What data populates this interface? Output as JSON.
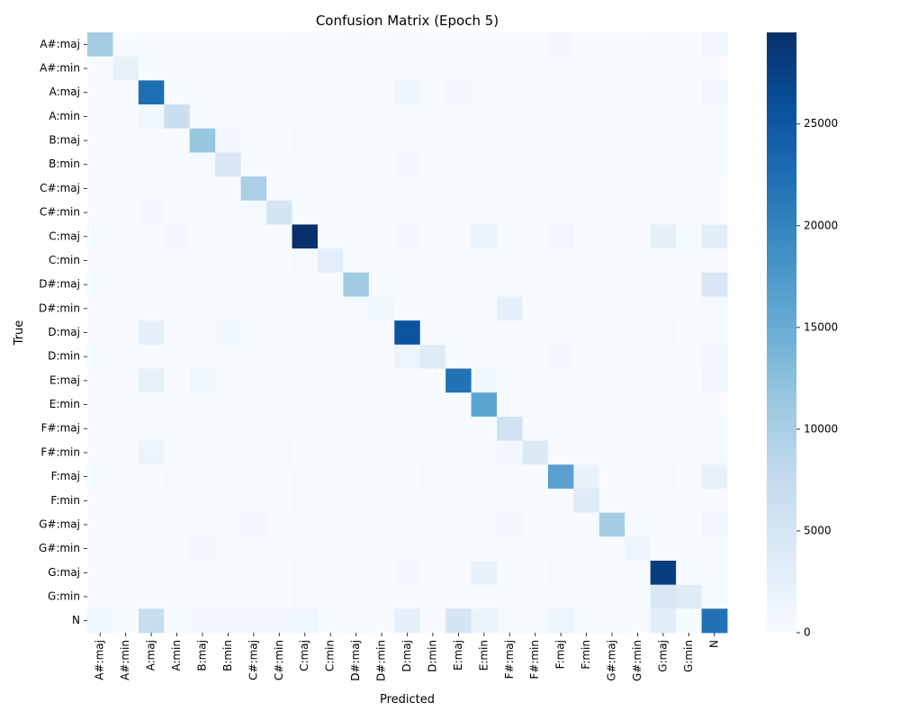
{
  "chart_data": {
    "type": "heatmap",
    "title": "Confusion Matrix (Epoch 5)",
    "xlabel": "Predicted",
    "ylabel": "True",
    "labels": [
      "A#:maj",
      "A#:min",
      "A:maj",
      "A:min",
      "B:maj",
      "B:min",
      "C#:maj",
      "C#:min",
      "C:maj",
      "C:min",
      "D#:maj",
      "D#:min",
      "D:maj",
      "D:min",
      "E:maj",
      "E:min",
      "F#:maj",
      "F#:min",
      "F:maj",
      "F:min",
      "G#:maj",
      "G#:min",
      "G:maj",
      "G:min",
      "N"
    ],
    "colorbar": {
      "min": 0,
      "max": 29500,
      "ticks": [
        0,
        5000,
        10000,
        15000,
        20000,
        25000
      ]
    },
    "colormap": [
      "#f7fbff",
      "#deebf7",
      "#c6dbef",
      "#9ecae1",
      "#6baed6",
      "#4292c6",
      "#2171b5",
      "#08519c",
      "#08306b"
    ],
    "matrix": [
      [
        10500,
        0,
        0,
        0,
        0,
        0,
        0,
        0,
        300,
        0,
        200,
        0,
        300,
        0,
        0,
        0,
        0,
        0,
        700,
        0,
        0,
        0,
        200,
        100,
        900
      ],
      [
        0,
        2200,
        0,
        0,
        0,
        0,
        500,
        0,
        0,
        0,
        0,
        0,
        0,
        0,
        0,
        0,
        200,
        0,
        0,
        0,
        0,
        150,
        0,
        0,
        0
      ],
      [
        0,
        0,
        22500,
        100,
        300,
        300,
        100,
        300,
        0,
        0,
        0,
        0,
        1200,
        0,
        800,
        500,
        0,
        0,
        100,
        0,
        0,
        0,
        100,
        0,
        900
      ],
      [
        0,
        0,
        1000,
        6500,
        0,
        0,
        0,
        0,
        0,
        0,
        0,
        0,
        300,
        0,
        0,
        300,
        0,
        0,
        200,
        0,
        0,
        0,
        0,
        0,
        300
      ],
      [
        0,
        0,
        300,
        0,
        11500,
        900,
        0,
        0,
        500,
        0,
        0,
        0,
        0,
        0,
        300,
        400,
        0,
        0,
        300,
        0,
        0,
        0,
        0,
        0,
        500
      ],
      [
        0,
        0,
        300,
        0,
        400,
        4500,
        0,
        0,
        0,
        0,
        0,
        0,
        600,
        0,
        0,
        400,
        0,
        200,
        0,
        0,
        0,
        0,
        0,
        0,
        300
      ],
      [
        0,
        300,
        0,
        0,
        0,
        0,
        10000,
        0,
        0,
        0,
        0,
        0,
        0,
        0,
        0,
        0,
        300,
        0,
        0,
        100,
        300,
        100,
        0,
        0,
        0
      ],
      [
        0,
        0,
        600,
        0,
        0,
        0,
        500,
        5000,
        0,
        0,
        0,
        0,
        0,
        0,
        500,
        0,
        0,
        0,
        0,
        0,
        0,
        0,
        0,
        0,
        0
      ],
      [
        400,
        0,
        0,
        800,
        0,
        300,
        0,
        0,
        29500,
        0,
        0,
        0,
        600,
        0,
        0,
        1900,
        0,
        0,
        900,
        0,
        0,
        0,
        2600,
        400,
        3200
      ],
      [
        0,
        0,
        0,
        0,
        0,
        0,
        0,
        0,
        400,
        3000,
        0,
        0,
        0,
        0,
        0,
        0,
        0,
        0,
        0,
        300,
        400,
        0,
        0,
        0,
        200
      ],
      [
        500,
        0,
        0,
        0,
        0,
        0,
        300,
        0,
        0,
        0,
        11000,
        0,
        0,
        0,
        0,
        0,
        0,
        0,
        0,
        0,
        0,
        0,
        0,
        0,
        4500
      ],
      [
        0,
        200,
        0,
        0,
        400,
        0,
        500,
        300,
        0,
        0,
        300,
        1000,
        0,
        0,
        0,
        0,
        2500,
        0,
        0,
        0,
        0,
        0,
        0,
        0,
        500
      ],
      [
        0,
        0,
        2500,
        0,
        0,
        1000,
        0,
        0,
        0,
        0,
        0,
        0,
        25500,
        0,
        0,
        500,
        0,
        0,
        300,
        0,
        0,
        0,
        400,
        0,
        500
      ],
      [
        300,
        0,
        0,
        0,
        0,
        0,
        0,
        0,
        0,
        0,
        0,
        0,
        1500,
        3500,
        0,
        0,
        0,
        0,
        700,
        0,
        0,
        0,
        0,
        0,
        600
      ],
      [
        0,
        0,
        2400,
        0,
        1000,
        0,
        0,
        0,
        0,
        0,
        0,
        0,
        200,
        0,
        22000,
        1000,
        300,
        0,
        300,
        0,
        0,
        0,
        100,
        0,
        900
      ],
      [
        0,
        0,
        0,
        0,
        0,
        0,
        0,
        0,
        0,
        0,
        0,
        0,
        0,
        0,
        200,
        16000,
        0,
        0,
        0,
        0,
        0,
        0,
        0,
        0,
        0
      ],
      [
        0,
        0,
        0,
        0,
        500,
        0,
        0,
        0,
        0,
        0,
        0,
        0,
        0,
        0,
        0,
        0,
        6000,
        0,
        0,
        0,
        0,
        0,
        300,
        0,
        300
      ],
      [
        0,
        0,
        1600,
        0,
        0,
        0,
        0,
        400,
        0,
        0,
        0,
        0,
        200,
        0,
        200,
        0,
        800,
        4000,
        0,
        0,
        0,
        0,
        0,
        0,
        300
      ],
      [
        500,
        0,
        0,
        500,
        0,
        0,
        0,
        0,
        400,
        0,
        0,
        0,
        0,
        500,
        0,
        0,
        300,
        0,
        16500,
        2000,
        0,
        0,
        500,
        0,
        2400
      ],
      [
        0,
        0,
        0,
        0,
        0,
        0,
        0,
        0,
        500,
        0,
        0,
        0,
        0,
        0,
        0,
        0,
        0,
        0,
        0,
        3500,
        0,
        0,
        0,
        0,
        200
      ],
      [
        0,
        0,
        300,
        0,
        200,
        0,
        600,
        0,
        0,
        0,
        400,
        0,
        0,
        0,
        200,
        0,
        600,
        0,
        0,
        200,
        10500,
        0,
        0,
        0,
        900
      ],
      [
        0,
        0,
        0,
        0,
        700,
        0,
        0,
        0,
        0,
        0,
        0,
        0,
        0,
        0,
        0,
        0,
        300,
        0,
        0,
        0,
        0,
        1500,
        0,
        0,
        300
      ],
      [
        0,
        0,
        300,
        300,
        0,
        0,
        0,
        0,
        500,
        0,
        0,
        0,
        800,
        0,
        0,
        2000,
        0,
        0,
        500,
        0,
        0,
        0,
        28000,
        0,
        400
      ],
      [
        0,
        0,
        0,
        0,
        0,
        0,
        0,
        0,
        500,
        0,
        0,
        0,
        0,
        0,
        0,
        0,
        0,
        0,
        300,
        0,
        0,
        0,
        4500,
        3500,
        300
      ],
      [
        1000,
        0,
        7000,
        500,
        800,
        800,
        800,
        600,
        1000,
        0,
        500,
        0,
        2500,
        0,
        5000,
        1800,
        400,
        400,
        1500,
        400,
        500,
        0,
        3300,
        300,
        22000
      ]
    ]
  }
}
